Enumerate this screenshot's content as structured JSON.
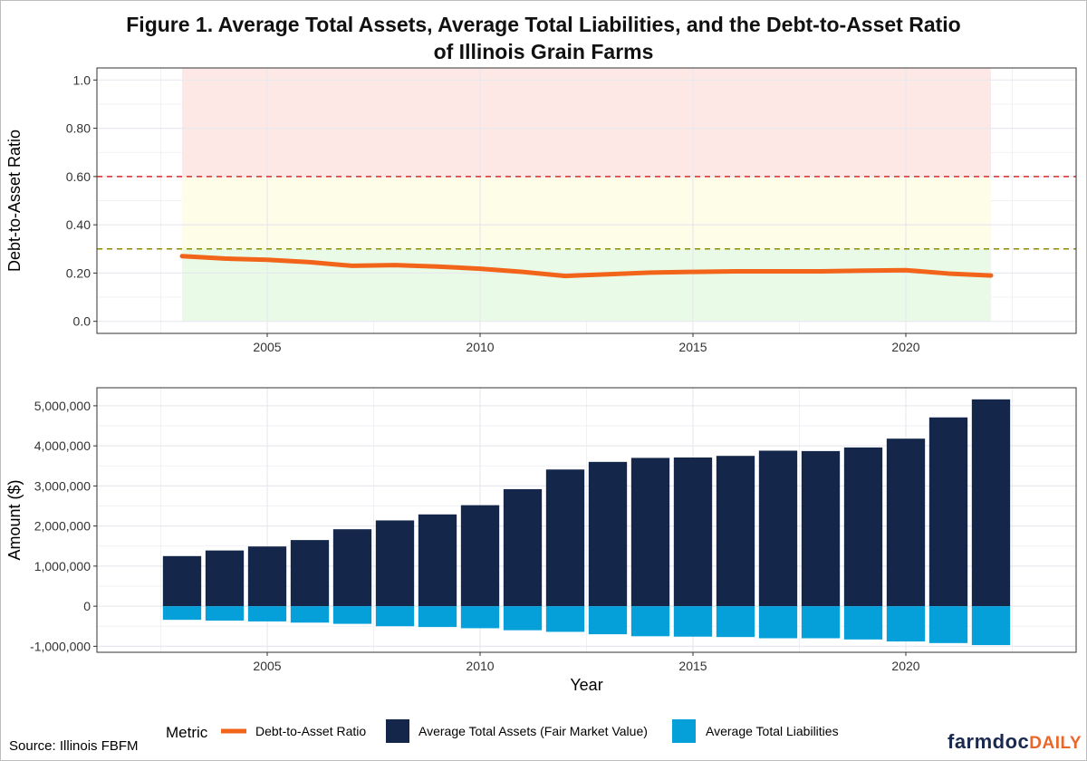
{
  "title_line1": "Figure 1. Average Total Assets, Average Total Liabilities, and the Debt-to-Asset Ratio",
  "title_line2": "of Illinois Grain Farms",
  "source": "Source: Illinois FBFM",
  "brand": {
    "part1": "farmdoc",
    "part2": "DAILY"
  },
  "colors": {
    "ratio_line": "#f26419",
    "assets": "#14264a",
    "liabilities": "#05a0d9",
    "zone_red": "#fde8e6",
    "zone_yellow": "#fdfde8",
    "zone_green": "#e9fbe6",
    "ref_red": "#d92b2b",
    "ref_olive": "#8b8b00",
    "grid": "#e8e8ef"
  },
  "legend": {
    "title": "Metric",
    "items": [
      {
        "label": "Debt-to-Asset Ratio",
        "key": "ratio"
      },
      {
        "label": "Average Total Assets (Fair Market Value)",
        "key": "assets"
      },
      {
        "label": "Average Total Liabilities",
        "key": "liabilities"
      }
    ]
  },
  "chart_data": [
    {
      "type": "line",
      "ylabel": "Debt-to-Asset Ratio",
      "xlabel": "",
      "xlim": [
        2001,
        2024
      ],
      "ylim": [
        -0.05,
        1.05
      ],
      "xticks": [
        2005,
        2010,
        2015,
        2020
      ],
      "yticks": [
        0.0,
        0.2,
        0.4,
        0.6,
        0.8,
        1.0
      ],
      "ytick_labels": [
        "0.0",
        "0.20",
        "0.40",
        "0.60",
        "0.80",
        "1.0"
      ],
      "reference_lines": [
        0.6,
        0.3
      ],
      "shaded_zones": [
        {
          "from": 0.6,
          "to": 1.05,
          "color": "red"
        },
        {
          "from": 0.3,
          "to": 0.6,
          "color": "yellow"
        },
        {
          "from": 0.0,
          "to": 0.3,
          "color": "green"
        }
      ],
      "zone_x_range": [
        2003,
        2022
      ],
      "grid": true,
      "series": [
        {
          "name": "Debt-to-Asset Ratio",
          "x": [
            2003,
            2004,
            2005,
            2006,
            2007,
            2008,
            2009,
            2010,
            2011,
            2012,
            2013,
            2014,
            2015,
            2016,
            2017,
            2018,
            2019,
            2020,
            2021,
            2022
          ],
          "values": [
            0.27,
            0.26,
            0.255,
            0.245,
            0.23,
            0.233,
            0.227,
            0.218,
            0.205,
            0.188,
            0.195,
            0.202,
            0.205,
            0.207,
            0.207,
            0.207,
            0.21,
            0.212,
            0.198,
            0.19
          ]
        }
      ]
    },
    {
      "type": "bar",
      "ylabel": "Amount ($)",
      "xlabel": "Year",
      "xlim": [
        2001,
        2024
      ],
      "ylim": [
        -1150000,
        5450000
      ],
      "xticks": [
        2005,
        2010,
        2015,
        2020
      ],
      "yticks": [
        -1000000,
        0,
        1000000,
        2000000,
        3000000,
        4000000,
        5000000
      ],
      "ytick_labels": [
        "-1,000,000",
        "0",
        "1,000,000",
        "2,000,000",
        "3,000,000",
        "4,000,000",
        "5,000,000"
      ],
      "grid": true,
      "categories": [
        2003,
        2004,
        2005,
        2006,
        2007,
        2008,
        2009,
        2010,
        2011,
        2012,
        2013,
        2014,
        2015,
        2016,
        2017,
        2018,
        2019,
        2020,
        2021,
        2022
      ],
      "series": [
        {
          "name": "Average Total Assets (Fair Market Value)",
          "values": [
            1250000,
            1390000,
            1490000,
            1650000,
            1920000,
            2140000,
            2290000,
            2520000,
            2920000,
            3410000,
            3600000,
            3700000,
            3710000,
            3750000,
            3880000,
            3870000,
            3960000,
            4180000,
            4710000,
            5160000
          ]
        },
        {
          "name": "Average Total Liabilities",
          "values": [
            -340000,
            -360000,
            -380000,
            -410000,
            -440000,
            -500000,
            -520000,
            -550000,
            -600000,
            -640000,
            -700000,
            -750000,
            -760000,
            -770000,
            -800000,
            -800000,
            -830000,
            -880000,
            -920000,
            -970000
          ]
        }
      ]
    }
  ]
}
